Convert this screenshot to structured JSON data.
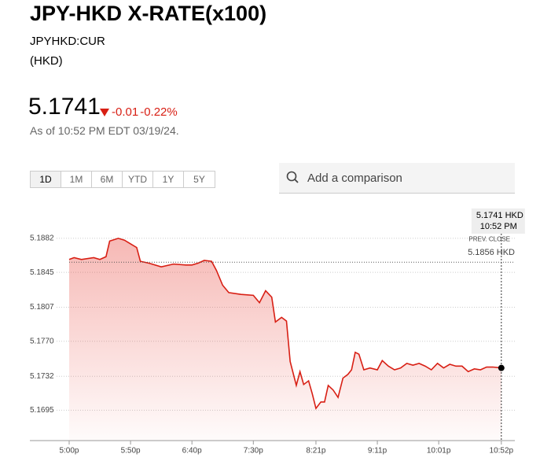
{
  "header": {
    "title": "JPY-HKD X-RATE(x100)",
    "ticker": "JPYHKD:CUR",
    "currency": "(HKD)",
    "price": "5.1741",
    "change": "-0.01",
    "change_pct": "-0.22%",
    "as_of": "As of 10:52 PM EDT 03/19/24.",
    "ranges": [
      "1D",
      "1M",
      "6M",
      "YTD",
      "1Y",
      "5Y"
    ],
    "search_placeholder": "Add a comparison"
  },
  "chart_data": {
    "type": "line",
    "color": "#d81f14",
    "x": [
      "5:00p",
      "5:04p",
      "5:10p",
      "5:20p",
      "5:25p",
      "5:30p",
      "5:33p",
      "5:40p",
      "5:45p",
      "5:50p",
      "5:55p",
      "5:58p",
      "6:05p",
      "6:15p",
      "6:25p",
      "6:35p",
      "6:40p",
      "6:45p",
      "6:50p",
      "6:56p",
      "7:00p",
      "7:05p",
      "7:10p",
      "7:20p",
      "7:30p",
      "7:35p",
      "7:40p",
      "7:45p",
      "7:48p",
      "7:53p",
      "7:57p",
      "8:00p",
      "8:05p",
      "8:08p",
      "8:11p",
      "8:15p",
      "8:18p",
      "8:21p",
      "8:25p",
      "8:28p",
      "8:31p",
      "8:35p",
      "8:39p",
      "8:43p",
      "8:47p",
      "8:50p",
      "8:53p",
      "8:56p",
      "9:00p",
      "9:05p",
      "9:11p",
      "9:15p",
      "9:20p",
      "9:25p",
      "9:30p",
      "9:35p",
      "9:40p",
      "9:45p",
      "9:50p",
      "9:55p",
      "10:00p",
      "10:05p",
      "10:10p",
      "10:15p",
      "10:20p",
      "10:25p",
      "10:30p",
      "10:35p",
      "10:40p",
      "10:45p",
      "10:52p"
    ],
    "values": [
      5.1859,
      5.1861,
      5.1859,
      5.1861,
      5.1859,
      5.1862,
      5.1879,
      5.1882,
      5.188,
      5.1876,
      5.1872,
      5.1857,
      5.1855,
      5.1851,
      5.1854,
      5.1853,
      5.1853,
      5.1855,
      5.1858,
      5.1857,
      5.1847,
      5.1831,
      5.1823,
      5.1821,
      5.182,
      5.1812,
      5.1825,
      5.1818,
      5.1791,
      5.1796,
      5.1792,
      5.1748,
      5.1722,
      5.1737,
      5.1723,
      5.1727,
      5.1713,
      5.1697,
      5.1704,
      5.1704,
      5.1722,
      5.1717,
      5.1709,
      5.173,
      5.1734,
      5.1739,
      5.1758,
      5.1756,
      5.1739,
      5.1741,
      5.1739,
      5.1749,
      5.1743,
      5.1739,
      5.1741,
      5.1746,
      5.1744,
      5.1746,
      5.1743,
      5.1739,
      5.1746,
      5.1741,
      5.1745,
      5.1743,
      5.1743,
      5.1737,
      5.174,
      5.1739,
      5.1742,
      5.1742,
      5.1741
    ],
    "xlim": [
      "4:28p",
      "11:03p"
    ],
    "xticks": [
      "5:00p",
      "5:50p",
      "6:40p",
      "7:30p",
      "8:21p",
      "9:11p",
      "10:01p",
      "10:52p"
    ],
    "ylim": [
      5.1662,
      5.1923
    ],
    "yticks": [
      5.1882,
      5.1845,
      5.1807,
      {
        "value": 5.177,
        "label": "5.1770"
      },
      5.1732,
      5.1695
    ],
    "grid": true,
    "prev_close": {
      "label": "PREV. CLOSE",
      "value": 5.1856,
      "value_label": "5.1856 HKD"
    },
    "tooltip": {
      "value_label": "5.1741 HKD",
      "time_label": "10:52 PM"
    }
  }
}
